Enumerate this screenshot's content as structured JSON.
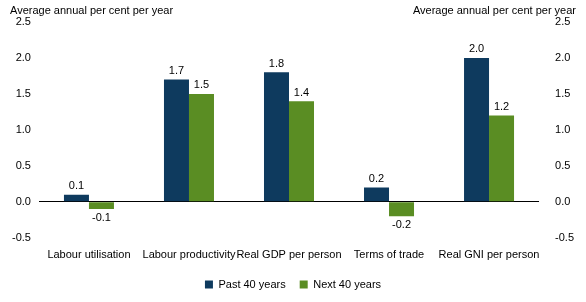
{
  "chart_data": {
    "type": "bar",
    "y_label": "Average annual per cent per year",
    "y2_label": "Average annual per cent per year",
    "categories": [
      "Labour utilisation",
      "Labour productivity",
      "Real GDP per person",
      "Terms of trade",
      "Real GNI per person"
    ],
    "series": [
      {
        "name": "Past 40 years",
        "color": "#0e3a5e",
        "values": [
          0.1,
          1.7,
          1.8,
          0.2,
          2.0
        ],
        "value_labels": [
          "0.1",
          "1.7",
          "1.8",
          "0.2",
          "2.0"
        ]
      },
      {
        "name": "Next 40 years",
        "color": "#5a8d23",
        "values": [
          -0.1,
          1.5,
          1.4,
          -0.2,
          1.2
        ],
        "value_labels": [
          "-0.1",
          "1.5",
          "1.4",
          "-0.2",
          "1.2"
        ]
      }
    ],
    "ylim": [
      -0.5,
      2.5
    ],
    "yticks": [
      -0.5,
      {
        "value": 0,
        "label": "0.0"
      },
      0.5,
      {
        "value": 1,
        "label": "1.0"
      },
      1.5,
      {
        "value": 2,
        "label": "2.0"
      },
      2.5
    ],
    "y2lim": [
      -0.5,
      2.5
    ],
    "y2ticks": [
      -0.5,
      {
        "value": 0,
        "label": "0.0"
      },
      0.5,
      {
        "value": 1,
        "label": "1.0"
      },
      1.5,
      {
        "value": 2,
        "label": "2.0"
      },
      2.5
    ],
    "grid": false,
    "legend": "bottom",
    "data_labels": true
  }
}
